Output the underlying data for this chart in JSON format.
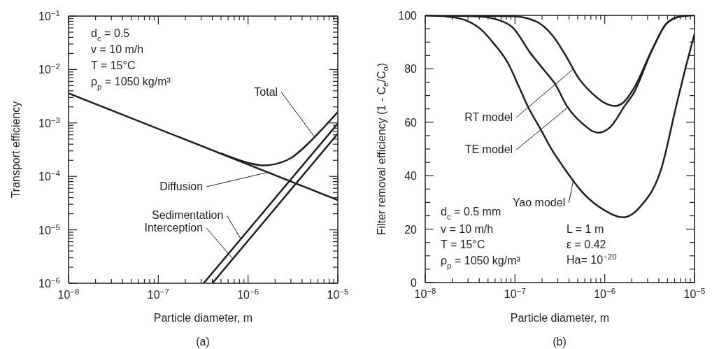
{
  "chart_data": [
    {
      "type": "line",
      "xlabel": "Particle diameter, m",
      "ylabel": "Transport efficiency",
      "log": "xy",
      "marker": "none",
      "line_style": "solid",
      "xlim": [
        1e-08,
        1e-05
      ],
      "ylim": [
        1e-06,
        0.1
      ],
      "xticks": [
        {
          "value": 1e-08,
          "label": "10$^{−8}$"
        },
        {
          "value": 2e-08,
          "label": null
        },
        {
          "value": 3e-08,
          "label": null
        },
        {
          "value": 4e-08,
          "label": null
        },
        {
          "value": 5e-08,
          "label": null
        },
        {
          "value": 6e-08,
          "label": null
        },
        {
          "value": 7e-08,
          "label": null
        },
        {
          "value": 8e-08,
          "label": null
        },
        {
          "value": 9e-08,
          "label": null
        },
        {
          "value": 1e-07,
          "label": "10$^{−7}$"
        },
        {
          "value": 2e-07,
          "label": null
        },
        {
          "value": 3e-07,
          "label": null
        },
        {
          "value": 4e-07,
          "label": null
        },
        {
          "value": 5e-07,
          "label": null
        },
        {
          "value": 6e-07,
          "label": null
        },
        {
          "value": 7e-07,
          "label": null
        },
        {
          "value": 8e-07,
          "label": null
        },
        {
          "value": 9e-07,
          "label": null
        },
        {
          "value": 1e-06,
          "label": "10$^{−6}$"
        },
        {
          "value": 2e-06,
          "label": null
        },
        {
          "value": 3e-06,
          "label": null
        },
        {
          "value": 4e-06,
          "label": null
        },
        {
          "value": 5e-06,
          "label": null
        },
        {
          "value": 6e-06,
          "label": null
        },
        {
          "value": 7e-06,
          "label": null
        },
        {
          "value": 8e-06,
          "label": null
        },
        {
          "value": 9e-06,
          "label": null
        },
        {
          "value": 1e-05,
          "label": "10$^{−5}$"
        }
      ],
      "yticks": [
        {
          "value": 1e-06,
          "label": "10$^{−6}$"
        },
        {
          "value": 2e-06,
          "label": null
        },
        {
          "value": 3e-06,
          "label": null
        },
        {
          "value": 4e-06,
          "label": null
        },
        {
          "value": 5e-06,
          "label": null
        },
        {
          "value": 6e-06,
          "label": null
        },
        {
          "value": 7e-06,
          "label": null
        },
        {
          "value": 8e-06,
          "label": null
        },
        {
          "value": 9e-06,
          "label": null
        },
        {
          "value": 1e-05,
          "label": "10$^{−5}$"
        },
        {
          "value": 2e-05,
          "label": null
        },
        {
          "value": 3e-05,
          "label": null
        },
        {
          "value": 4e-05,
          "label": null
        },
        {
          "value": 5e-05,
          "label": null
        },
        {
          "value": 6e-05,
          "label": null
        },
        {
          "value": 7e-05,
          "label": null
        },
        {
          "value": 8e-05,
          "label": null
        },
        {
          "value": 9e-05,
          "label": null
        },
        {
          "value": 0.0001,
          "label": "10$^{−4}$"
        },
        {
          "value": 0.0002,
          "label": null
        },
        {
          "value": 0.0003,
          "label": null
        },
        {
          "value": 0.0004,
          "label": null
        },
        {
          "value": 0.0005,
          "label": null
        },
        {
          "value": 0.0006,
          "label": null
        },
        {
          "value": 0.0007,
          "label": null
        },
        {
          "value": 0.0008,
          "label": null
        },
        {
          "value": 0.0009,
          "label": null
        },
        {
          "value": 0.001,
          "label": "10$^{−3}$"
        },
        {
          "value": 0.002,
          "label": null
        },
        {
          "value": 0.003,
          "label": null
        },
        {
          "value": 0.004,
          "label": null
        },
        {
          "value": 0.005,
          "label": null
        },
        {
          "value": 0.006,
          "label": null
        },
        {
          "value": 0.007,
          "label": null
        },
        {
          "value": 0.008,
          "label": null
        },
        {
          "value": 0.009,
          "label": null
        },
        {
          "value": 0.01,
          "label": "10$^{−2}$"
        },
        {
          "value": 0.02,
          "label": null
        },
        {
          "value": 0.03,
          "label": null
        },
        {
          "value": 0.04,
          "label": null
        },
        {
          "value": 0.05,
          "label": null
        },
        {
          "value": 0.06,
          "label": null
        },
        {
          "value": 0.07,
          "label": null
        },
        {
          "value": 0.08,
          "label": null
        },
        {
          "value": 0.09,
          "label": null
        },
        {
          "value": 0.1,
          "label": "10$^{−1}$"
        }
      ],
      "series": [
        {
          "name": "Total",
          "color": "#231f20",
          "x": [
            5e-07,
            1e-06,
            1.5e-06,
            2e-06,
            3e-06,
            5e-06,
            7e-06,
            1e-05
          ],
          "values": [
            0.00027,
            0.00018,
            0.00016,
            0.00017,
            0.00022,
            0.00046,
            0.00083,
            0.0016
          ]
        },
        {
          "name": "Diffusion",
          "color": "#231f20",
          "x": [
            1e-08,
            1e-05
          ],
          "values": [
            0.0036,
            3.6e-05
          ]
        },
        {
          "name": "Sedimentation",
          "color": "#231f20",
          "x": [
            3.2e-07,
            1e-05
          ],
          "values": [
            1e-06,
            0.00098
          ]
        },
        {
          "name": "Interception",
          "color": "#231f20",
          "x": [
            4e-07,
            1e-05
          ],
          "values": [
            1e-06,
            0.00063
          ]
        }
      ],
      "annotations": [
        "d$_{c}$ = 0.5",
        "v = 10 m/h",
        "T = 15°C",
        "ρ$_{p}$ = 1050 kg/m³",
        "(a)"
      ]
    },
    {
      "type": "line",
      "xlabel": "Particle diameter, m",
      "ylabel": "Filter removal efficiency (1 - C$_{e}$/C$_{o}$)",
      "log": "x",
      "marker": "none",
      "line_style": "solid",
      "xlim": [
        1e-08,
        1e-05
      ],
      "ylim": [
        0,
        100
      ],
      "xticks": [
        {
          "value": 1e-08,
          "label": "10$^{−8}$"
        },
        {
          "value": 2e-08,
          "label": null
        },
        {
          "value": 3e-08,
          "label": null
        },
        {
          "value": 4e-08,
          "label": null
        },
        {
          "value": 5e-08,
          "label": null
        },
        {
          "value": 6e-08,
          "label": null
        },
        {
          "value": 7e-08,
          "label": null
        },
        {
          "value": 8e-08,
          "label": null
        },
        {
          "value": 9e-08,
          "label": null
        },
        {
          "value": 1e-07,
          "label": "10$^{−7}$"
        },
        {
          "value": 2e-07,
          "label": null
        },
        {
          "value": 3e-07,
          "label": null
        },
        {
          "value": 4e-07,
          "label": null
        },
        {
          "value": 5e-07,
          "label": null
        },
        {
          "value": 6e-07,
          "label": null
        },
        {
          "value": 7e-07,
          "label": null
        },
        {
          "value": 8e-07,
          "label": null
        },
        {
          "value": 9e-07,
          "label": null
        },
        {
          "value": 1e-06,
          "label": "10$^{−6}$"
        },
        {
          "value": 2e-06,
          "label": null
        },
        {
          "value": 3e-06,
          "label": null
        },
        {
          "value": 4e-06,
          "label": null
        },
        {
          "value": 5e-06,
          "label": null
        },
        {
          "value": 6e-06,
          "label": null
        },
        {
          "value": 7e-06,
          "label": null
        },
        {
          "value": 8e-06,
          "label": null
        },
        {
          "value": 9e-06,
          "label": null
        },
        {
          "value": 1e-05,
          "label": "10$^{−5}$"
        }
      ],
      "yticks": [
        0,
        {
          "value": 5,
          "label": null
        },
        {
          "value": 10,
          "label": null
        },
        {
          "value": 15,
          "label": null
        },
        20,
        {
          "value": 25,
          "label": null
        },
        {
          "value": 30,
          "label": null
        },
        {
          "value": 35,
          "label": null
        },
        40,
        {
          "value": 45,
          "label": null
        },
        {
          "value": 50,
          "label": null
        },
        {
          "value": 55,
          "label": null
        },
        60,
        {
          "value": 65,
          "label": null
        },
        {
          "value": 70,
          "label": null
        },
        {
          "value": 75,
          "label": null
        },
        80,
        {
          "value": 85,
          "label": null
        },
        {
          "value": 90,
          "label": null
        },
        {
          "value": 95,
          "label": null
        },
        100
      ],
      "series": [
        {
          "name": "RT model",
          "color": "#231f20",
          "x": [
            1e-08,
            3.8e-08,
            9.4e-08,
            1.7e-07,
            2.6e-07,
            3.7e-07,
            5e-07,
            7.2e-07,
            1.03e-06,
            1.31e-06,
            1.66e-06,
            2.1e-06,
            3.4e-06,
            4.9e-06,
            7e-06,
            1e-05
          ],
          "values": [
            100,
            99.8,
            99.7,
            97.8,
            92.6,
            84.8,
            77,
            70.9,
            67,
            66.1,
            67.8,
            72.6,
            87.4,
            97,
            99.6,
            100
          ]
        },
        {
          "name": "TE model",
          "color": "#231f20",
          "x": [
            1e-08,
            3.8e-08,
            6.2e-08,
            9.4e-08,
            1.5e-07,
            2.1e-07,
            2.8e-07,
            3.8e-07,
            5.6e-07,
            8.4e-07,
            1.16e-06,
            1.66e-06,
            2.1e-06,
            3.4e-06,
            4.9e-06,
            7e-06
          ],
          "values": [
            100,
            99.6,
            98.5,
            95.5,
            85.7,
            79.6,
            74.3,
            66,
            59.6,
            56.1,
            58.3,
            66,
            70.9,
            87.4,
            97,
            99.6
          ]
        },
        {
          "name": "Yao model",
          "color": "#231f20",
          "x": [
            1e-08,
            1.8e-08,
            2.9e-08,
            4.1e-08,
            5.8e-08,
            8.4e-08,
            1.1e-07,
            1.4e-07,
            1.9e-07,
            2.5e-07,
            3.5e-07,
            5.7e-07,
            1e-06,
            1.6e-06,
            2.5e-06,
            4.3e-06,
            6.2e-06,
            7.9e-06,
            1e-05
          ],
          "values": [
            100,
            99.5,
            98,
            95,
            89.5,
            82,
            73.5,
            65.7,
            57.8,
            50.4,
            43,
            33.6,
            27,
            24.4,
            28.5,
            43,
            65.6,
            80,
            93
          ]
        }
      ],
      "annotations": [
        "d$_{c}$ = 0.5 mm",
        "v = 10 m/h",
        "T = 15°C",
        "ρ$_{p}$ = 1050 kg/m³",
        "L = 1 m",
        "ε = 0.42",
        "Ha= 10$^{−20}$",
        "(b)"
      ]
    }
  ]
}
